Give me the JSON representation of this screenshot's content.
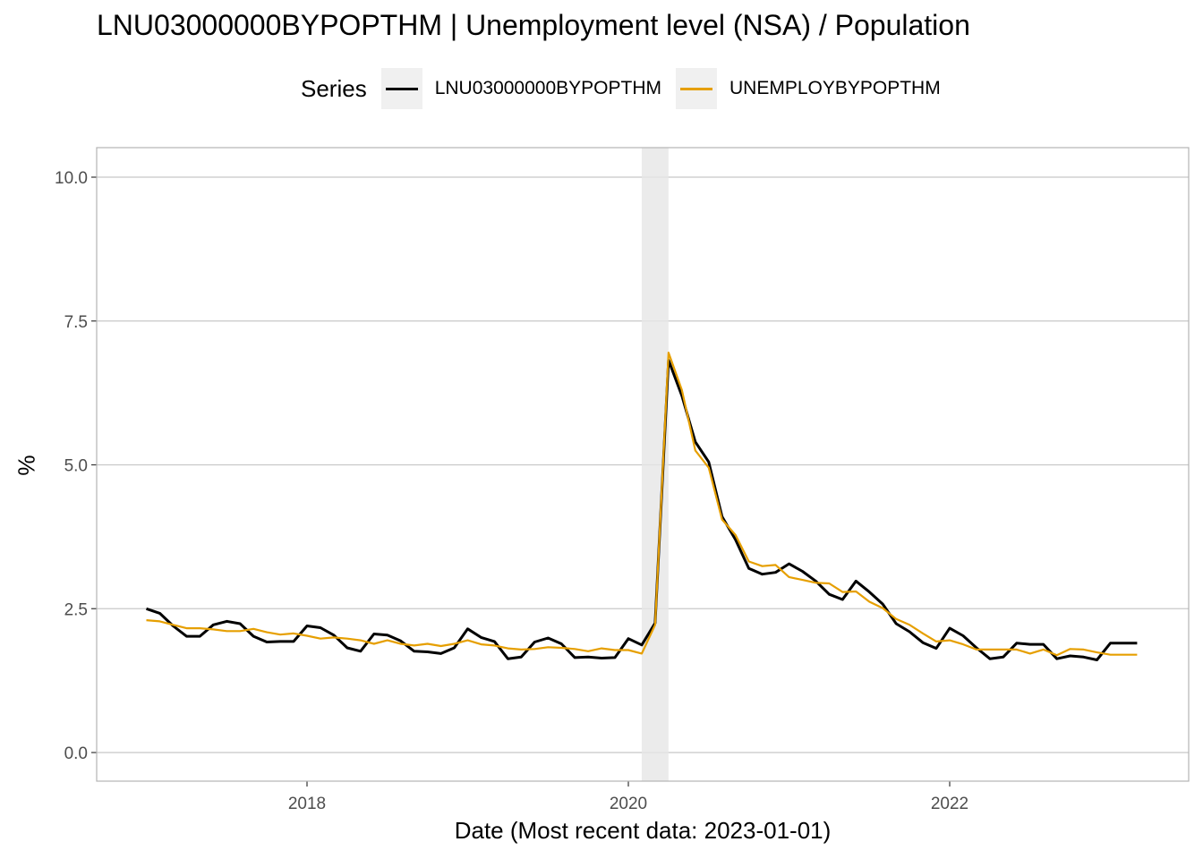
{
  "chart_data": {
    "type": "line",
    "title": "LNU03000000BYPOPTHM | Unemployment level (NSA) / Population",
    "xlabel": "Date (Most recent data: 2023-01-01)",
    "ylabel": "%",
    "ylim": [
      0,
      10
    ],
    "y_ticks": [
      "0.0",
      "2.5",
      "5.0",
      "7.5",
      "10.0"
    ],
    "x_ticks": [
      "2018",
      "2020",
      "2022"
    ],
    "grid": true,
    "legend": {
      "title": "Series",
      "placement": "top"
    },
    "shaded_regions": [
      {
        "start": "2020-02",
        "end": "2020-04"
      }
    ],
    "series": [
      {
        "name": "LNU03000000BYPOPTHM",
        "color": "#000000",
        "x": [
          "2017-01",
          "2017-02",
          "2017-03",
          "2017-04",
          "2017-05",
          "2017-06",
          "2017-07",
          "2017-08",
          "2017-09",
          "2017-10",
          "2017-11",
          "2017-12",
          "2018-01",
          "2018-02",
          "2018-03",
          "2018-04",
          "2018-05",
          "2018-06",
          "2018-07",
          "2018-08",
          "2018-09",
          "2018-10",
          "2018-11",
          "2018-12",
          "2019-01",
          "2019-02",
          "2019-03",
          "2019-04",
          "2019-05",
          "2019-06",
          "2019-07",
          "2019-08",
          "2019-09",
          "2019-10",
          "2019-11",
          "2019-12",
          "2020-01",
          "2020-02",
          "2020-03",
          "2020-04",
          "2020-05",
          "2020-06",
          "2020-07",
          "2020-08",
          "2020-09",
          "2020-10",
          "2020-11",
          "2020-12",
          "2021-01",
          "2021-02",
          "2021-03",
          "2021-04",
          "2021-05",
          "2021-06",
          "2021-07",
          "2021-08",
          "2021-09",
          "2021-10",
          "2021-11",
          "2021-12",
          "2022-01",
          "2022-02",
          "2022-03",
          "2022-04",
          "2022-05",
          "2022-06",
          "2022-07",
          "2022-08",
          "2022-09",
          "2022-10",
          "2022-11",
          "2022-12",
          "2023-01",
          "2023-02",
          "2023-03"
        ],
        "values": [
          2.5,
          2.42,
          2.2,
          2.02,
          2.02,
          2.22,
          2.28,
          2.24,
          2.02,
          1.92,
          1.93,
          1.93,
          2.2,
          2.17,
          2.04,
          1.82,
          1.76,
          2.06,
          2.04,
          1.94,
          1.76,
          1.75,
          1.72,
          1.82,
          2.15,
          2.0,
          1.93,
          1.63,
          1.66,
          1.92,
          1.99,
          1.89,
          1.65,
          1.66,
          1.64,
          1.65,
          1.98,
          1.87,
          2.25,
          6.82,
          6.2,
          5.4,
          5.05,
          4.1,
          3.7,
          3.2,
          3.1,
          3.13,
          3.28,
          3.15,
          2.98,
          2.75,
          2.66,
          2.98,
          2.79,
          2.58,
          2.24,
          2.1,
          1.91,
          1.81,
          2.16,
          2.03,
          1.82,
          1.63,
          1.66,
          1.9,
          1.88,
          1.88,
          1.63,
          1.68,
          1.66,
          1.61,
          1.9,
          1.9,
          1.9
        ]
      },
      {
        "name": "UNEMPLOYBYPOPTHM",
        "color": "#E69F00",
        "x": [
          "2017-01",
          "2017-02",
          "2017-03",
          "2017-04",
          "2017-05",
          "2017-06",
          "2017-07",
          "2017-08",
          "2017-09",
          "2017-10",
          "2017-11",
          "2017-12",
          "2018-01",
          "2018-02",
          "2018-03",
          "2018-04",
          "2018-05",
          "2018-06",
          "2018-07",
          "2018-08",
          "2018-09",
          "2018-10",
          "2018-11",
          "2018-12",
          "2019-01",
          "2019-02",
          "2019-03",
          "2019-04",
          "2019-05",
          "2019-06",
          "2019-07",
          "2019-08",
          "2019-09",
          "2019-10",
          "2019-11",
          "2019-12",
          "2020-01",
          "2020-02",
          "2020-03",
          "2020-04",
          "2020-05",
          "2020-06",
          "2020-07",
          "2020-08",
          "2020-09",
          "2020-10",
          "2020-11",
          "2020-12",
          "2021-01",
          "2021-02",
          "2021-03",
          "2021-04",
          "2021-05",
          "2021-06",
          "2021-07",
          "2021-08",
          "2021-09",
          "2021-10",
          "2021-11",
          "2021-12",
          "2022-01",
          "2022-02",
          "2022-03",
          "2022-04",
          "2022-05",
          "2022-06",
          "2022-07",
          "2022-08",
          "2022-09",
          "2022-10",
          "2022-11",
          "2022-12",
          "2023-01",
          "2023-02",
          "2023-03"
        ],
        "values": [
          2.3,
          2.28,
          2.22,
          2.16,
          2.16,
          2.14,
          2.11,
          2.11,
          2.15,
          2.09,
          2.05,
          2.07,
          2.03,
          1.98,
          2.0,
          1.98,
          1.95,
          1.89,
          1.95,
          1.89,
          1.86,
          1.89,
          1.85,
          1.89,
          1.95,
          1.88,
          1.86,
          1.81,
          1.79,
          1.8,
          1.83,
          1.82,
          1.8,
          1.76,
          1.81,
          1.78,
          1.78,
          1.72,
          2.22,
          6.95,
          6.3,
          5.25,
          4.95,
          4.05,
          3.78,
          3.32,
          3.24,
          3.26,
          3.05,
          3.0,
          2.95,
          2.94,
          2.79,
          2.8,
          2.62,
          2.51,
          2.32,
          2.22,
          2.07,
          1.93,
          1.95,
          1.88,
          1.79,
          1.79,
          1.79,
          1.79,
          1.72,
          1.79,
          1.69,
          1.8,
          1.79,
          1.74,
          1.7,
          1.7,
          1.7
        ]
      }
    ]
  }
}
